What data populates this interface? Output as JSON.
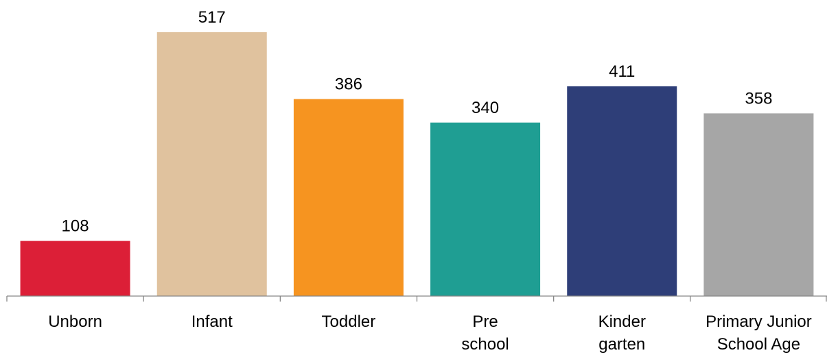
{
  "chart_data": {
    "type": "bar",
    "categories": [
      [
        "Unborn"
      ],
      [
        "Infant"
      ],
      [
        "Toddler"
      ],
      [
        "Pre",
        "school"
      ],
      [
        "Kinder",
        "garten"
      ],
      [
        "Primary Junior",
        "School Age"
      ]
    ],
    "values": [
      108,
      517,
      386,
      340,
      411,
      358
    ],
    "colors": [
      "#dc1f37",
      "#e0c29e",
      "#f69420",
      "#1f9e93",
      "#2e3e78",
      "#a6a6a6"
    ],
    "ylim": [
      0,
      517
    ],
    "grid": false,
    "legend": "none",
    "title": "",
    "xlabel": "",
    "ylabel": ""
  }
}
